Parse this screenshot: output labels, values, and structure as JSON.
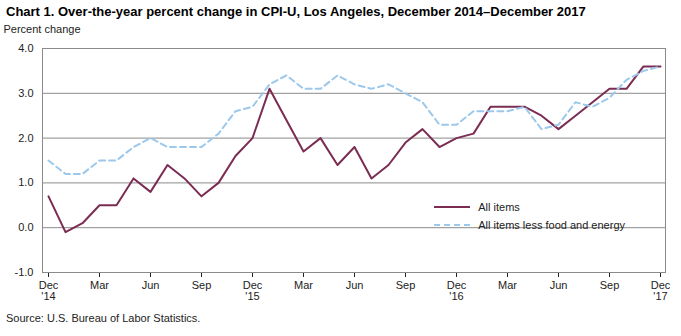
{
  "chart_data": {
    "type": "line",
    "title": "Chart 1. Over-the-year percent change in CPI-U, Los Angeles, December 2014–December 2017",
    "y_label": "Percent change",
    "source": "Source: U.S. Bureau of Labor Statistics.",
    "categories": [
      "Dec\n'14",
      null,
      null,
      "Mar",
      null,
      null,
      "Jun",
      null,
      null,
      "Sep",
      null,
      null,
      "Dec\n'15",
      null,
      null,
      "Mar",
      null,
      null,
      "Jun",
      null,
      null,
      "Sep",
      null,
      null,
      "Dec\n'16",
      null,
      null,
      "Mar",
      null,
      null,
      "Jun",
      null,
      null,
      "Sep",
      null,
      null,
      "Dec\n'17"
    ],
    "series": [
      {
        "name": "All items",
        "color": "#7b2c52",
        "line_style": "solid",
        "values": [
          0.7,
          -0.1,
          0.1,
          0.5,
          0.5,
          1.1,
          0.8,
          1.4,
          1.1,
          0.7,
          1.0,
          1.6,
          2.0,
          3.1,
          2.4,
          1.7,
          2.0,
          1.4,
          1.8,
          1.1,
          1.4,
          1.9,
          2.2,
          1.8,
          2.0,
          2.1,
          2.7,
          2.7,
          2.7,
          2.5,
          2.2,
          2.5,
          2.8,
          3.1,
          3.1,
          3.6,
          3.6
        ]
      },
      {
        "name": "All items less food and energy",
        "color": "#9cc8ec",
        "line_style": "dashed",
        "values": [
          1.5,
          1.2,
          1.2,
          1.5,
          1.5,
          1.8,
          2.0,
          1.8,
          1.8,
          1.8,
          2.1,
          2.6,
          2.7,
          3.2,
          3.4,
          3.1,
          3.1,
          3.4,
          3.2,
          3.1,
          3.2,
          3.0,
          2.8,
          2.3,
          2.3,
          2.6,
          2.6,
          2.6,
          2.7,
          2.2,
          2.3,
          2.8,
          2.7,
          2.9,
          3.3,
          3.5,
          3.6
        ]
      }
    ],
    "ylim": [
      -1,
      4
    ],
    "yticks": [
      {
        "value": -1,
        "label": "-1.0"
      },
      {
        "value": 0,
        "label": "0.0"
      },
      {
        "value": 1,
        "label": "1.0"
      },
      {
        "value": 2,
        "label": "2.0"
      },
      {
        "value": 3,
        "label": "3.0"
      },
      {
        "value": 4,
        "label": "4.0"
      }
    ],
    "grid": true,
    "legend": "lower right"
  }
}
